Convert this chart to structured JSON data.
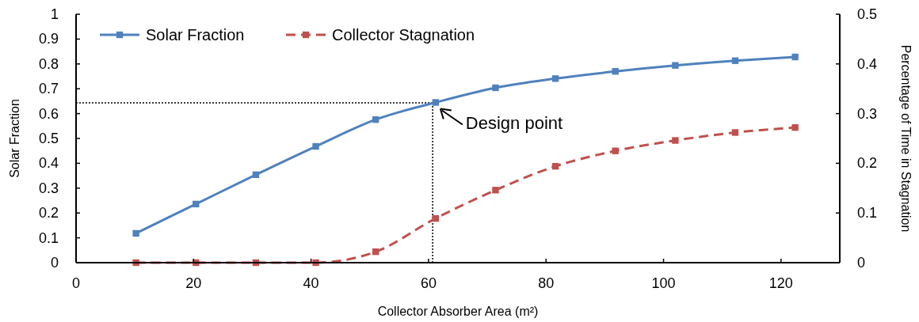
{
  "chart_data": {
    "type": "line",
    "xlabel": "Collector Absorber Area (m²)",
    "ylabel": "Solar Fraction",
    "y2label": "Percentage of Time in Stagnation",
    "x": [
      10.2,
      20.4,
      30.6,
      40.8,
      51,
      61.2,
      71.4,
      81.6,
      91.8,
      102,
      112.2,
      122.4
    ],
    "xlim": [
      0,
      130
    ],
    "xticks": [
      0,
      20,
      40,
      60,
      80,
      100,
      120
    ],
    "ylim": [
      0,
      1
    ],
    "yticks": [
      0,
      0.1,
      0.2,
      0.3,
      0.4,
      0.5,
      0.6,
      0.7,
      0.8,
      0.9,
      1
    ],
    "y2lim": [
      0,
      0.5
    ],
    "y2ticks": [
      0,
      0.1,
      0.2,
      0.3,
      0.4,
      0.5
    ],
    "series": [
      {
        "name": "Solar Fraction",
        "color": "#4f81bd",
        "line_style": "solid",
        "values": [
          0.118,
          0.236,
          0.354,
          0.468,
          0.576,
          0.645,
          0.704,
          0.741,
          0.77,
          0.794,
          0.813,
          0.828
        ]
      },
      {
        "name": "Collector Stagnation",
        "color": "#c0504d",
        "line_style": "dashed",
        "axis": "y2",
        "values": [
          0,
          0,
          0,
          0,
          0.022,
          0.089,
          0.146,
          0.194,
          0.225,
          0.246,
          0.262,
          0.272
        ]
      }
    ],
    "ref_lines": [
      {
        "axis": "x",
        "value": 60.7,
        "line_style": "dotted",
        "color": "#000000"
      },
      {
        "axis": "y",
        "value": 0.643,
        "line_style": "dotted",
        "color": "#000000"
      }
    ],
    "annotations": [
      {
        "text": "Design point",
        "x": 61.2,
        "y": 0.645
      }
    ],
    "marker": "square",
    "legend": "top left",
    "grid": false
  }
}
